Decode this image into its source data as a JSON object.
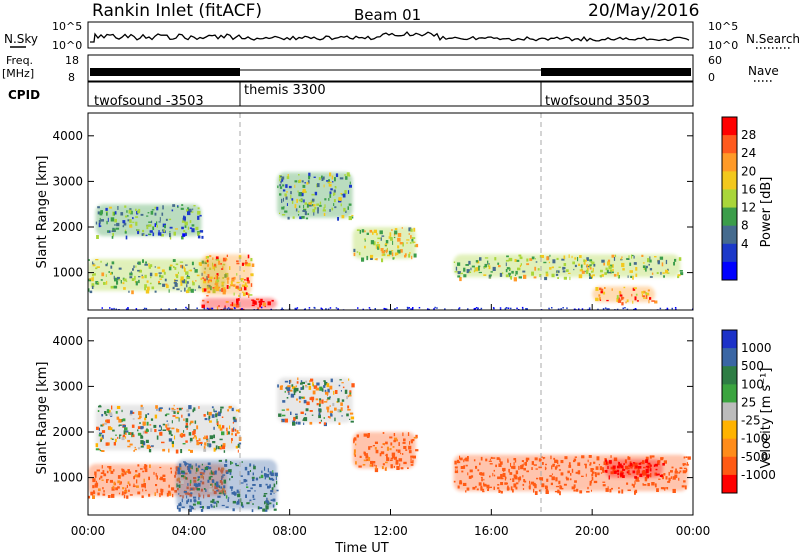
{
  "header": {
    "station": "Rankin Inlet (fitACF)",
    "beam": "Beam 01",
    "date": "20/May/2016"
  },
  "nsky_panel": {
    "left_label": "N.Sky",
    "right_label": "N.Search",
    "left_ticks": [
      "10^5",
      "10^0"
    ],
    "right_ticks": [
      "10^5",
      "10^0"
    ]
  },
  "freq_panel": {
    "left_label_1": "Freq.",
    "left_label_2": "[MHz]",
    "left_ticks": [
      "18",
      "8"
    ],
    "right_label": "Nave",
    "right_ticks": [
      "60",
      "0"
    ]
  },
  "cpid_panel": {
    "label": "CPID",
    "segments": [
      {
        "name": "twofsound -3503",
        "start_hour": 0
      },
      {
        "name": "themis 3300",
        "start_hour": 6
      },
      {
        "name": "twofsound 3503",
        "start_hour": 18
      }
    ]
  },
  "power_colorbar": {
    "label": "Power [dB]",
    "ticks": [
      "28",
      "24",
      "20",
      "16",
      "12",
      "8",
      "4"
    ],
    "colors": [
      "#ff0000",
      "#ff5a1e",
      "#ff9a28",
      "#f3c81d",
      "#a9d63a",
      "#3b9d4a",
      "#456b8e",
      "#1c39c9",
      "#0000ff"
    ]
  },
  "velocity_colorbar": {
    "label": "Velocity [m s⁻¹]",
    "ticks": [
      "1000",
      "500",
      "100",
      "25",
      "-25",
      "-100",
      "-500",
      "-1000"
    ],
    "colors": [
      "#1c32c8",
      "#3a66a4",
      "#2e7d44",
      "#3ba43f",
      "#bcbcbc",
      "#ffb300",
      "#ff8c1a",
      "#ff5a14",
      "#ff0000"
    ]
  },
  "chart_data": [
    {
      "type": "heatmap",
      "name": "Power",
      "ylabel": "Slant Range [km]",
      "xlim_hours": [
        0,
        24
      ],
      "ylim_km": [
        180,
        4500
      ],
      "y_ticks": [
        1000,
        2000,
        3000,
        4000
      ],
      "colorbar_label": "Power [dB]",
      "colorbar_range_db": [
        0,
        30
      ],
      "features": [
        {
          "hours": [
            0.0,
            5.5
          ],
          "range_km": [
            600,
            1300
          ],
          "value": 14
        },
        {
          "hours": [
            0.3,
            4.5
          ],
          "range_km": [
            1800,
            2500
          ],
          "value": 10
        },
        {
          "hours": [
            4.5,
            7.5
          ],
          "range_km": [
            200,
            450
          ],
          "value": 28
        },
        {
          "hours": [
            4.5,
            6.5
          ],
          "range_km": [
            500,
            1400
          ],
          "value": 22
        },
        {
          "hours": [
            7.5,
            10.5
          ],
          "range_km": [
            2200,
            3200
          ],
          "value": 12
        },
        {
          "hours": [
            10.5,
            13.0
          ],
          "range_km": [
            1300,
            2000
          ],
          "value": 16
        },
        {
          "hours": [
            14.5,
            23.5
          ],
          "range_km": [
            900,
            1400
          ],
          "value": 14
        },
        {
          "hours": [
            20.0,
            22.5
          ],
          "range_km": [
            350,
            700
          ],
          "value": 22
        }
      ]
    },
    {
      "type": "heatmap",
      "name": "Velocity",
      "ylabel": "Slant Range [km]",
      "xlabel": "Time UT",
      "xlim_hours": [
        0,
        24
      ],
      "ylim_km": [
        180,
        4500
      ],
      "y_ticks": [
        1000,
        2000,
        3000,
        4000
      ],
      "x_ticks": [
        "00:00",
        "04:00",
        "08:00",
        "12:00",
        "16:00",
        "20:00",
        "00:00"
      ],
      "colorbar_label": "Velocity [m s⁻¹]",
      "colorbar_range": [
        -1000,
        1000
      ],
      "features": [
        {
          "hours": [
            0.0,
            5.5
          ],
          "range_km": [
            600,
            1300
          ],
          "value": -200
        },
        {
          "hours": [
            0.3,
            6.0
          ],
          "range_km": [
            1600,
            2600
          ],
          "value": 0
        },
        {
          "hours": [
            3.5,
            7.5
          ],
          "range_km": [
            300,
            1400
          ],
          "value": 150
        },
        {
          "hours": [
            7.5,
            10.5
          ],
          "range_km": [
            2200,
            3200
          ],
          "value": 0
        },
        {
          "hours": [
            10.5,
            13.0
          ],
          "range_km": [
            1200,
            2000
          ],
          "value": -200
        },
        {
          "hours": [
            14.5,
            23.8
          ],
          "range_km": [
            700,
            1500
          ],
          "value": -300
        },
        {
          "hours": [
            20.5,
            22.8
          ],
          "range_km": [
            1000,
            1400
          ],
          "value": -700
        }
      ]
    }
  ]
}
